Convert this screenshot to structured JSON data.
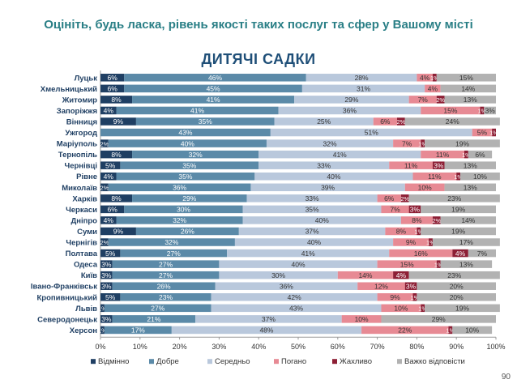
{
  "title": "Оцініть, будь ласка, рівень якості таких послуг та сфер у Вашому місті",
  "subtitle": "ДИТЯЧІ САДКИ",
  "page_number": "90",
  "colors": {
    "Відмінно": "#1f3f63",
    "Добре": "#5b8aa8",
    "Середньо": "#b9c8dc",
    "Погано": "#e78a94",
    "Жахливо": "#8d1f35",
    "Важко відповісти": "#b2b2b2"
  },
  "chart_data": {
    "type": "bar",
    "orientation": "horizontal",
    "stacked": true,
    "xlim": [
      0,
      100
    ],
    "x_ticks": [
      "0%",
      "10%",
      "20%",
      "30%",
      "40%",
      "50%",
      "60%",
      "70%",
      "80%",
      "90%",
      "100%"
    ],
    "legend_position": "bottom",
    "categories": [
      "Луцьк",
      "Хмельницький",
      "Житомир",
      "Запоріжжя",
      "Вінниця",
      "Ужгород",
      "Маріуполь",
      "Тернопіль",
      "Чернівці",
      "Рівне",
      "Миколаїв",
      "Харків",
      "Черкаси",
      "Дніпро",
      "Суми",
      "Чернігів",
      "Полтава",
      "Одеса",
      "Київ",
      "Івано-Франківськ",
      "Кропивницький",
      "Львів",
      "Северодонецьк",
      "Херсон"
    ],
    "series": [
      {
        "name": "Відмінно",
        "values": [
          6,
          6,
          8,
          4,
          9,
          0,
          2,
          8,
          5,
          4,
          2,
          8,
          6,
          4,
          9,
          2,
          5,
          3,
          3,
          3,
          5,
          1,
          3,
          1
        ]
      },
      {
        "name": "Добре",
        "values": [
          46,
          45,
          41,
          41,
          35,
          43,
          40,
          32,
          35,
          35,
          36,
          29,
          30,
          32,
          26,
          32,
          27,
          27,
          27,
          26,
          23,
          27,
          21,
          17
        ]
      },
      {
        "name": "Середньо",
        "values": [
          28,
          31,
          29,
          36,
          25,
          51,
          32,
          41,
          33,
          40,
          39,
          33,
          35,
          40,
          37,
          40,
          41,
          40,
          30,
          36,
          42,
          43,
          37,
          48
        ]
      },
      {
        "name": "Погано",
        "values": [
          4,
          4,
          7,
          15,
          6,
          5,
          7,
          11,
          11,
          11,
          10,
          6,
          7,
          8,
          8,
          9,
          16,
          15,
          14,
          12,
          9,
          10,
          10,
          22
        ]
      },
      {
        "name": "Жахливо",
        "values": [
          1,
          0,
          2,
          1,
          2,
          1,
          1,
          1,
          3,
          1,
          0,
          2,
          3,
          2,
          1,
          1,
          4,
          1,
          4,
          3,
          1,
          1,
          0,
          1
        ]
      },
      {
        "name": "Важко відповісти",
        "values": [
          15,
          14,
          13,
          3,
          24,
          0,
          19,
          6,
          13,
          10,
          13,
          23,
          19,
          14,
          19,
          17,
          7,
          13,
          23,
          20,
          20,
          19,
          29,
          10
        ]
      }
    ]
  }
}
